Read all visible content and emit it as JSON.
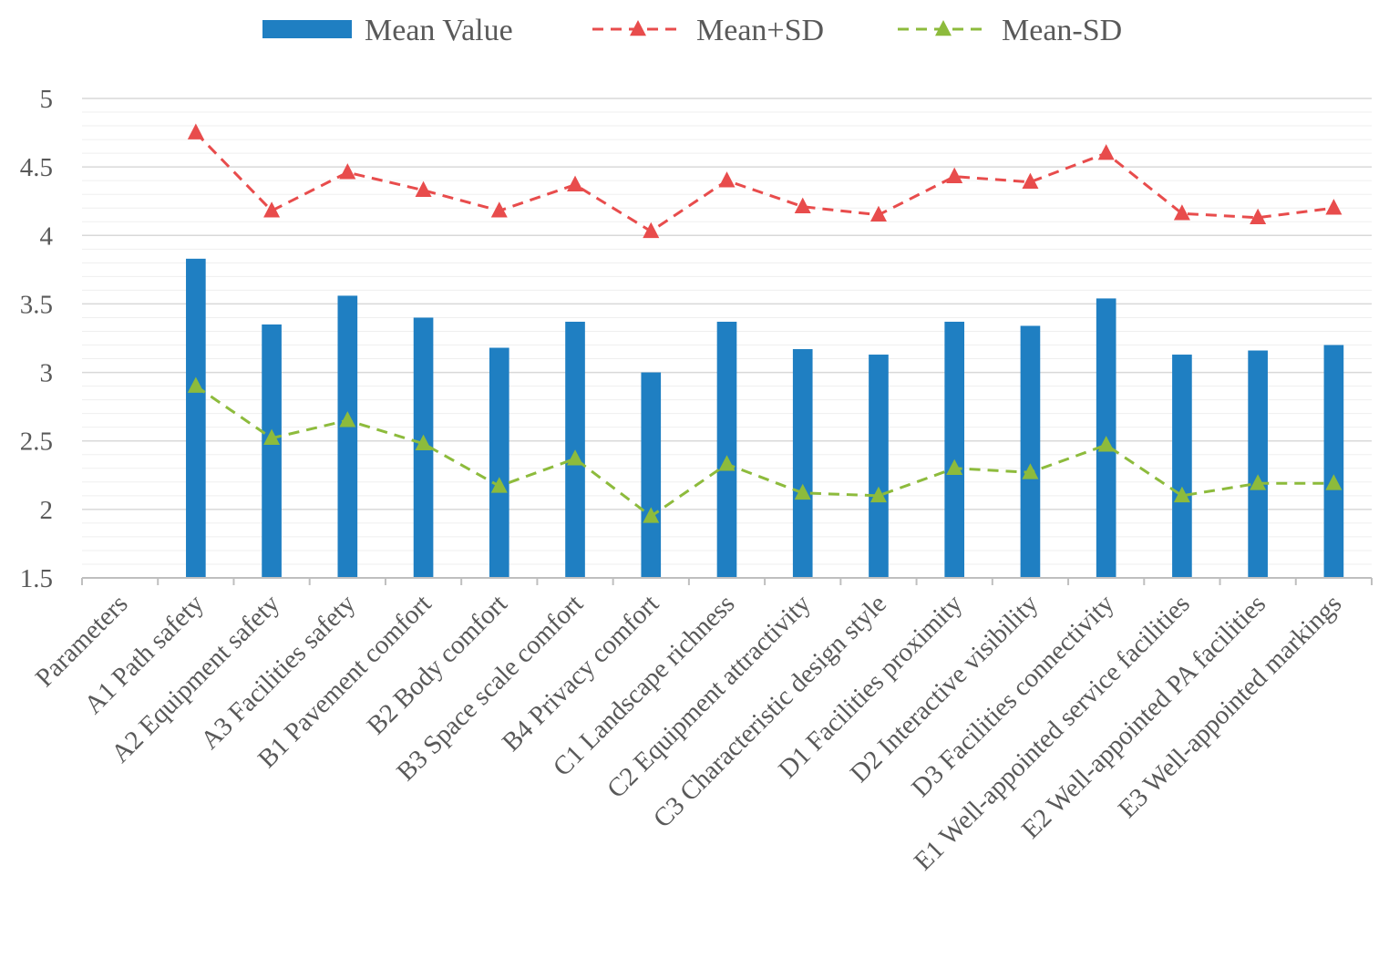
{
  "chart_data": {
    "type": "bar",
    "title": "",
    "xlabel": "",
    "ylabel": "",
    "ylim": [
      1.5,
      5
    ],
    "yticks": [
      "1.5",
      "2",
      "2.5",
      "3",
      "3.5",
      "4",
      "4.5",
      "5"
    ],
    "grid": true,
    "legend_position": "top-center",
    "categories": [
      "Parameters",
      "A1 Path safety",
      "A2 Equipment safety",
      "A3 Facilities safety",
      "B1 Pavement comfort",
      "B2 Body comfort",
      "B3 Space scale comfort",
      "B4 Privacy comfort",
      "C1 Landscape richness",
      "C2 Equipment attractivity",
      "C3 Characteristic design style",
      "D1 Facilities proximity",
      "D2 Interactive visibility",
      "D3 Facilities connectivity",
      "E1 Well-appointed service facilities",
      "E2 Well-appointed PA facilities",
      "E3 Well-appointed markings"
    ],
    "series": [
      {
        "name": "Mean Value",
        "kind": "bar",
        "color": "#1f7fc2",
        "values": [
          null,
          3.83,
          3.35,
          3.56,
          3.4,
          3.18,
          3.37,
          3.0,
          3.37,
          3.17,
          3.13,
          3.37,
          3.34,
          3.54,
          3.13,
          3.16,
          3.2
        ]
      },
      {
        "name": "Mean+SD",
        "kind": "line",
        "color": "#e84c4c",
        "values": [
          null,
          4.75,
          4.18,
          4.46,
          4.33,
          4.18,
          4.37,
          4.03,
          4.4,
          4.21,
          4.15,
          4.43,
          4.39,
          4.6,
          4.16,
          4.13,
          4.2
        ]
      },
      {
        "name": "Mean-SD",
        "kind": "line",
        "color": "#8dbb3c",
        "values": [
          null,
          2.9,
          2.52,
          2.65,
          2.48,
          2.17,
          2.37,
          1.95,
          2.33,
          2.12,
          2.1,
          2.3,
          2.27,
          2.47,
          2.1,
          2.19,
          2.19
        ]
      }
    ]
  }
}
